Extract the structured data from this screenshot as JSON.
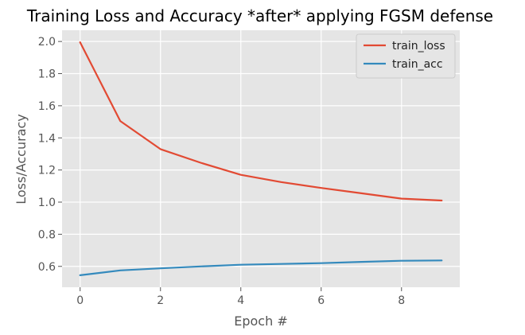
{
  "chart_data": {
    "type": "line",
    "title": "Training Loss and Accuracy *after* applying FGSM defense",
    "xlabel": "Epoch #",
    "ylabel": "Loss/Accuracy",
    "x": [
      0,
      1,
      2,
      3,
      4,
      5,
      6,
      7,
      8,
      9
    ],
    "xlim": [
      -0.45,
      9.45
    ],
    "ylim": [
      0.47,
      2.07
    ],
    "xticks": [
      0,
      2,
      4,
      6,
      8
    ],
    "yticks": [
      0.6,
      0.8,
      1.0,
      1.2,
      1.4,
      1.6,
      1.8,
      2.0
    ],
    "xtick_labels": [
      "0",
      "2",
      "4",
      "6",
      "8"
    ],
    "ytick_labels": [
      "0.6",
      "0.8",
      "1.0",
      "1.2",
      "1.4",
      "1.6",
      "1.8",
      "2.0"
    ],
    "grid": true,
    "legend_position": "top-right",
    "series": [
      {
        "name": "train_loss",
        "color": "#e24a33",
        "values": [
          1.995,
          1.505,
          1.33,
          1.245,
          1.17,
          1.125,
          1.088,
          1.055,
          1.022,
          1.01
        ]
      },
      {
        "name": "train_acc",
        "color": "#348abd",
        "values": [
          0.545,
          0.575,
          0.588,
          0.6,
          0.61,
          0.615,
          0.62,
          0.628,
          0.635,
          0.637
        ]
      }
    ]
  }
}
